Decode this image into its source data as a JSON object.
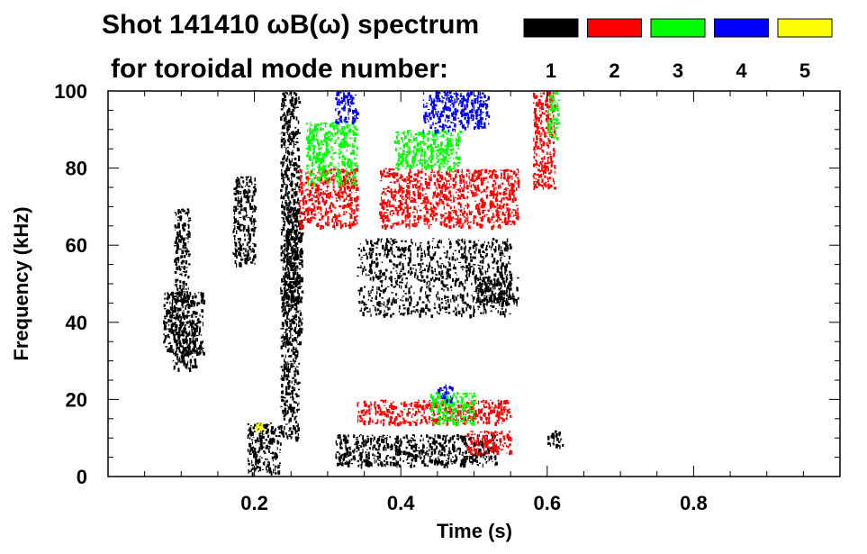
{
  "chart_data": {
    "type": "heatmap",
    "title": "Shot 141410 ωB(ω) spectrum",
    "subtitle": "for toroidal mode number:",
    "xlabel": "Time (s)",
    "ylabel": "Frequency (kHz)",
    "xlim": [
      0.0,
      1.0
    ],
    "ylim": [
      0,
      100
    ],
    "x_ticks": [
      0.2,
      0.4,
      0.6,
      0.8
    ],
    "x_tick_labels": [
      "0.2",
      "0.4",
      "0.6",
      "0.8"
    ],
    "y_ticks": [
      0,
      20,
      40,
      60,
      80,
      100
    ],
    "y_tick_labels": [
      "0",
      "20",
      "40",
      "60",
      "80",
      "100"
    ],
    "legend_placement": "top",
    "legend": [
      {
        "label": "1",
        "color": "#000000"
      },
      {
        "label": "2",
        "color": "#ff0000"
      },
      {
        "label": "3",
        "color": "#00ff00"
      },
      {
        "label": "4",
        "color": "#0000ff"
      },
      {
        "label": "5",
        "color": "#ffff00"
      }
    ],
    "series": [
      {
        "mode": "1",
        "color": "#000000",
        "regions": [
          {
            "t": [
              0.075,
              0.13
            ],
            "f": [
              32,
              48
            ]
          },
          {
            "t": [
              0.085,
              0.12
            ],
            "f": [
              28,
              40
            ]
          },
          {
            "t": [
              0.09,
              0.11
            ],
            "f": [
              45,
              70
            ]
          },
          {
            "t": [
              0.17,
              0.2
            ],
            "f": [
              55,
              78
            ]
          },
          {
            "t": [
              0.19,
              0.235
            ],
            "f": [
              1,
              14
            ]
          },
          {
            "t": [
              0.235,
              0.26
            ],
            "f": [
              10,
              100
            ]
          },
          {
            "t": [
              0.24,
              0.265
            ],
            "f": [
              35,
              70
            ]
          },
          {
            "t": [
              0.31,
              0.53
            ],
            "f": [
              3,
              11
            ]
          },
          {
            "t": [
              0.34,
              0.55
            ],
            "f": [
              42,
              62
            ]
          },
          {
            "t": [
              0.5,
              0.56
            ],
            "f": [
              45,
              52
            ]
          },
          {
            "t": [
              0.6,
              0.62
            ],
            "f": [
              8,
              12
            ]
          }
        ]
      },
      {
        "mode": "2",
        "color": "#ff0000",
        "regions": [
          {
            "t": [
              0.26,
              0.34
            ],
            "f": [
              65,
              80
            ]
          },
          {
            "t": [
              0.34,
              0.55
            ],
            "f": [
              14,
              20
            ]
          },
          {
            "t": [
              0.49,
              0.55
            ],
            "f": [
              6,
              12
            ]
          },
          {
            "t": [
              0.37,
              0.56
            ],
            "f": [
              65,
              80
            ]
          },
          {
            "t": [
              0.58,
              0.61
            ],
            "f": [
              75,
              100
            ]
          }
        ]
      },
      {
        "mode": "3",
        "color": "#00ff00",
        "regions": [
          {
            "t": [
              0.27,
              0.34
            ],
            "f": [
              76,
              92
            ]
          },
          {
            "t": [
              0.39,
              0.48
            ],
            "f": [
              80,
              90
            ]
          },
          {
            "t": [
              0.44,
              0.5
            ],
            "f": [
              14,
              22
            ]
          },
          {
            "t": [
              0.6,
              0.615
            ],
            "f": [
              88,
              100
            ]
          }
        ]
      },
      {
        "mode": "4",
        "color": "#0000ff",
        "regions": [
          {
            "t": [
              0.31,
              0.34
            ],
            "f": [
              92,
              100
            ]
          },
          {
            "t": [
              0.43,
              0.52
            ],
            "f": [
              90,
              100
            ]
          },
          {
            "t": [
              0.45,
              0.47
            ],
            "f": [
              20,
              24
            ]
          }
        ]
      },
      {
        "mode": "5",
        "color": "#ffff00",
        "regions": [
          {
            "t": [
              0.2,
              0.21
            ],
            "f": [
              12,
              14
            ]
          }
        ]
      }
    ]
  }
}
